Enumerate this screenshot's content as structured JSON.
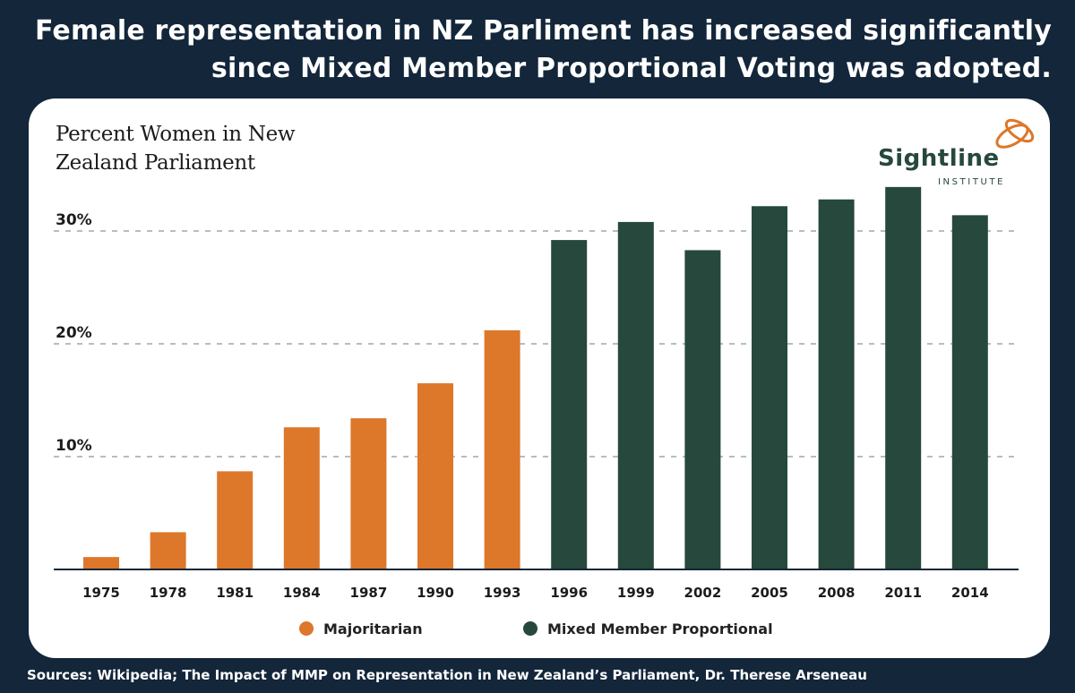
{
  "headline": {
    "line1": "Female representation in NZ Parliment has increased significantly",
    "line2": "since Mixed Member Proportional Voting was adopted."
  },
  "logo": {
    "name": "Sightline",
    "sub": "INSTITUTE"
  },
  "footer": {
    "sources": "Sources: Wikipedia; The Impact of MMP on Representation in New Zealand’s Parliament, Dr. Therese Arseneau"
  },
  "colors": {
    "majoritarian": "#dd772a",
    "mmp": "#26483d",
    "background": "#13263a",
    "grid": "#9aa8b0",
    "axis": "#13263a"
  },
  "chart_data": {
    "type": "bar",
    "title_lines": [
      "Percent Women in New",
      "Zealand Parliament"
    ],
    "categories": [
      "1975",
      "1978",
      "1981",
      "1984",
      "1987",
      "1990",
      "1993",
      "1996",
      "1999",
      "2002",
      "2005",
      "2008",
      "2011",
      "2014"
    ],
    "series": [
      {
        "name": "Majoritarian",
        "key": "majoritarian",
        "values": [
          1.1,
          3.3,
          8.7,
          12.6,
          13.4,
          16.5,
          21.2,
          null,
          null,
          null,
          null,
          null,
          null,
          null
        ]
      },
      {
        "name": "Mixed Member Proportional",
        "key": "mmp",
        "values": [
          null,
          null,
          null,
          null,
          null,
          null,
          null,
          29.2,
          30.8,
          28.3,
          32.2,
          32.8,
          33.9,
          31.4
        ]
      }
    ],
    "y_ticks": [
      {
        "value": 10,
        "label": "10%"
      },
      {
        "value": 20,
        "label": "20%"
      },
      {
        "value": 30,
        "label": "30%"
      }
    ],
    "ylim": [
      0,
      36
    ],
    "grid": "dashed horizontal",
    "legend": "bottom"
  }
}
